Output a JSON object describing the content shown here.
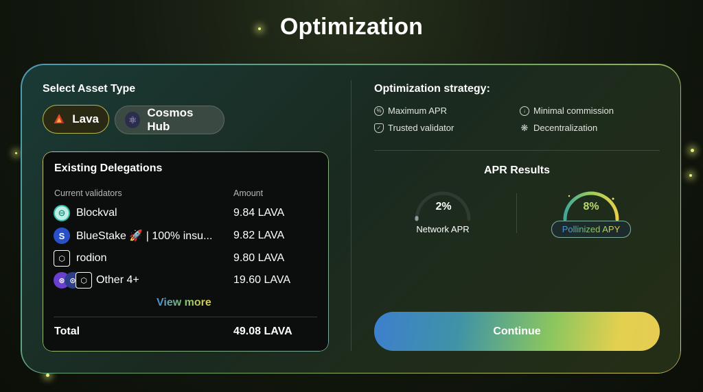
{
  "page": {
    "title": "Optimization"
  },
  "asset_type": {
    "label": "Select Asset Type",
    "options": [
      {
        "label": "Lava",
        "icon": "lava-icon",
        "selected": true
      },
      {
        "label": "Cosmos Hub",
        "icon": "cosmos-icon",
        "selected": false
      }
    ]
  },
  "delegations": {
    "title": "Existing Delegations",
    "columns": {
      "validator": "Current validators",
      "amount": "Amount"
    },
    "rows": [
      {
        "name": "Blockval",
        "amount": "9.84 LAVA",
        "icon": "blockval-icon"
      },
      {
        "name": "BlueStake 🚀 | 100% insu...",
        "amount": "9.82 LAVA",
        "icon": "bluestake-icon"
      },
      {
        "name": "rodion",
        "amount": "9.80 LAVA",
        "icon": "rodion-icon"
      },
      {
        "name": "Other 4+",
        "amount": "19.60 LAVA",
        "icon": "others-icon"
      }
    ],
    "view_more": "View more",
    "total_label": "Total",
    "total_value": "49.08 LAVA"
  },
  "strategy": {
    "title": "Optimization strategy:",
    "items": [
      {
        "label": "Maximum APR",
        "icon": "percent-icon"
      },
      {
        "label": "Minimal commission",
        "icon": "arrow-down-icon"
      },
      {
        "label": "Trusted validator",
        "icon": "shield-icon"
      },
      {
        "label": "Decentralization",
        "icon": "network-icon"
      }
    ]
  },
  "apr_results": {
    "title": "APR Results",
    "network": {
      "value": "2%",
      "label": "Network APR",
      "fraction": 0.02
    },
    "pollinized": {
      "value": "8%",
      "label": "Pollinized APY",
      "fraction": 1.0
    }
  },
  "continue_label": "Continue",
  "colors": {
    "accent_blue": "#3d7fce",
    "accent_green": "#8cc65e",
    "accent_yellow": "#e3d04f"
  }
}
